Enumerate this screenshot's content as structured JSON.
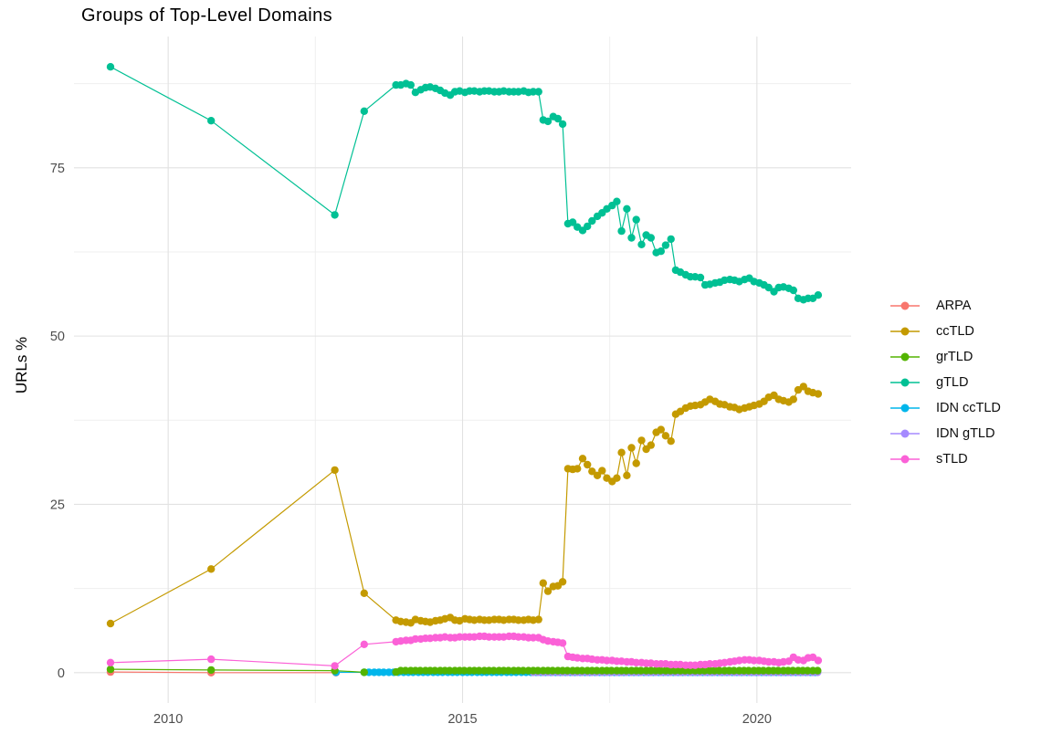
{
  "chart": {
    "title": "Groups of Top-Level Domains",
    "ylabel": "URLs %"
  },
  "chart_data": {
    "type": "line",
    "title": "Groups of Top-Level Domains",
    "xlabel": "",
    "ylabel": "URLs %",
    "grid": true,
    "legend_position": "right",
    "x_domain": [
      2008.4,
      2021.6
    ],
    "y_domain": [
      -4.5,
      94.5
    ],
    "x_ticks": [
      {
        "value": 2010,
        "label": "2010"
      },
      {
        "value": 2015,
        "label": "2015"
      },
      {
        "value": 2020,
        "label": "2020"
      }
    ],
    "y_ticks": [
      {
        "value": 0,
        "label": "0"
      },
      {
        "value": 25,
        "label": "25"
      },
      {
        "value": 50,
        "label": "50"
      },
      {
        "value": 75,
        "label": "75"
      }
    ],
    "x_minor_gridlines": [
      2012.5,
      2017.5
    ],
    "y_minor_gridlines": [
      12.5,
      37.5,
      62.5,
      87.5
    ],
    "tick_label_color": "#4d4d4d",
    "major_grid_color": "#e2e2e2",
    "minor_grid_color": "#efefef",
    "draw_order": [
      "ARPA",
      "ccTLD",
      "IDN ccTLD",
      "IDN gTLD",
      "grTLD",
      "gTLD",
      "sTLD"
    ],
    "series": [
      {
        "name": "ARPA",
        "color": "#F8766D",
        "points": [
          [
            2009.02,
            0.1
          ],
          [
            2010.73,
            0.0
          ],
          [
            2012.85,
            0.0
          ]
        ]
      },
      {
        "name": "ccTLD",
        "color": "#C49A00",
        "points": [
          [
            2009.02,
            7.3
          ],
          [
            2010.73,
            15.4
          ],
          [
            2012.83,
            30.1
          ],
          [
            2013.33,
            11.8
          ],
          [
            2013.87,
            7.8
          ],
          [
            2013.95,
            7.6
          ],
          [
            2014.04,
            7.5
          ],
          [
            2014.12,
            7.4
          ],
          [
            2014.2,
            7.9
          ],
          [
            2014.29,
            7.7
          ],
          [
            2014.37,
            7.6
          ],
          [
            2014.45,
            7.5
          ],
          [
            2014.54,
            7.7
          ],
          [
            2014.62,
            7.8
          ],
          [
            2014.7,
            8.0
          ],
          [
            2014.79,
            8.2
          ],
          [
            2014.87,
            7.8
          ],
          [
            2014.95,
            7.7
          ],
          [
            2015.04,
            8.0
          ],
          [
            2015.12,
            7.9
          ],
          [
            2015.2,
            7.8
          ],
          [
            2015.29,
            7.9
          ],
          [
            2015.37,
            7.8
          ],
          [
            2015.45,
            7.8
          ],
          [
            2015.54,
            7.9
          ],
          [
            2015.62,
            7.9
          ],
          [
            2015.7,
            7.8
          ],
          [
            2015.79,
            7.9
          ],
          [
            2015.87,
            7.9
          ],
          [
            2015.95,
            7.8
          ],
          [
            2016.04,
            7.8
          ],
          [
            2016.12,
            7.9
          ],
          [
            2016.2,
            7.8
          ],
          [
            2016.29,
            7.9
          ],
          [
            2016.37,
            13.3
          ],
          [
            2016.45,
            12.1
          ],
          [
            2016.54,
            12.8
          ],
          [
            2016.62,
            12.9
          ],
          [
            2016.7,
            13.5
          ],
          [
            2016.79,
            30.3
          ],
          [
            2016.87,
            30.2
          ],
          [
            2016.95,
            30.3
          ],
          [
            2017.04,
            31.8
          ],
          [
            2017.12,
            30.9
          ],
          [
            2017.2,
            29.9
          ],
          [
            2017.29,
            29.3
          ],
          [
            2017.37,
            30.0
          ],
          [
            2017.45,
            28.9
          ],
          [
            2017.54,
            28.4
          ],
          [
            2017.62,
            28.9
          ],
          [
            2017.7,
            32.7
          ],
          [
            2017.79,
            29.3
          ],
          [
            2017.87,
            33.4
          ],
          [
            2017.95,
            31.1
          ],
          [
            2018.04,
            34.5
          ],
          [
            2018.12,
            33.2
          ],
          [
            2018.2,
            33.8
          ],
          [
            2018.29,
            35.7
          ],
          [
            2018.37,
            36.1
          ],
          [
            2018.45,
            35.2
          ],
          [
            2018.54,
            34.4
          ],
          [
            2018.62,
            38.4
          ],
          [
            2018.7,
            38.8
          ],
          [
            2018.79,
            39.3
          ],
          [
            2018.87,
            39.6
          ],
          [
            2018.95,
            39.7
          ],
          [
            2019.04,
            39.8
          ],
          [
            2019.12,
            40.2
          ],
          [
            2019.2,
            40.6
          ],
          [
            2019.29,
            40.3
          ],
          [
            2019.37,
            39.9
          ],
          [
            2019.45,
            39.8
          ],
          [
            2019.54,
            39.5
          ],
          [
            2019.62,
            39.4
          ],
          [
            2019.7,
            39.1
          ],
          [
            2019.79,
            39.3
          ],
          [
            2019.87,
            39.5
          ],
          [
            2019.95,
            39.7
          ],
          [
            2020.04,
            39.9
          ],
          [
            2020.12,
            40.3
          ],
          [
            2020.2,
            40.9
          ],
          [
            2020.29,
            41.2
          ],
          [
            2020.37,
            40.6
          ],
          [
            2020.45,
            40.4
          ],
          [
            2020.54,
            40.2
          ],
          [
            2020.62,
            40.6
          ],
          [
            2020.7,
            42.0
          ],
          [
            2020.79,
            42.5
          ],
          [
            2020.87,
            41.8
          ],
          [
            2020.95,
            41.6
          ],
          [
            2021.04,
            41.4
          ]
        ]
      },
      {
        "name": "grTLD",
        "color": "#53B400",
        "points": [
          [
            2009.02,
            0.5
          ],
          [
            2010.73,
            0.4
          ],
          [
            2012.83,
            0.3
          ],
          [
            2013.33,
            0.05
          ],
          [
            2013.87,
            0.1
          ]
        ],
        "flat": {
          "from": 2013.95,
          "to": 2021.04,
          "step": 0.0833,
          "y": 0.3
        }
      },
      {
        "name": "gTLD",
        "color": "#00C094",
        "points": [
          [
            2009.02,
            90.0
          ],
          [
            2010.73,
            82.0
          ],
          [
            2012.83,
            68.0
          ],
          [
            2013.33,
            83.4
          ],
          [
            2013.87,
            87.3
          ],
          [
            2013.95,
            87.3
          ],
          [
            2014.04,
            87.5
          ],
          [
            2014.12,
            87.3
          ],
          [
            2014.2,
            86.2
          ],
          [
            2014.29,
            86.6
          ],
          [
            2014.37,
            86.9
          ],
          [
            2014.45,
            87.0
          ],
          [
            2014.54,
            86.8
          ],
          [
            2014.62,
            86.5
          ],
          [
            2014.7,
            86.1
          ],
          [
            2014.79,
            85.8
          ],
          [
            2014.87,
            86.3
          ],
          [
            2014.95,
            86.4
          ],
          [
            2015.04,
            86.2
          ],
          [
            2015.12,
            86.4
          ],
          [
            2015.2,
            86.4
          ],
          [
            2015.29,
            86.3
          ],
          [
            2015.37,
            86.4
          ],
          [
            2015.45,
            86.4
          ],
          [
            2015.54,
            86.3
          ],
          [
            2015.62,
            86.3
          ],
          [
            2015.7,
            86.4
          ],
          [
            2015.79,
            86.3
          ],
          [
            2015.87,
            86.3
          ],
          [
            2015.95,
            86.3
          ],
          [
            2016.04,
            86.4
          ],
          [
            2016.12,
            86.2
          ],
          [
            2016.2,
            86.3
          ],
          [
            2016.29,
            86.3
          ],
          [
            2016.37,
            82.1
          ],
          [
            2016.45,
            81.9
          ],
          [
            2016.54,
            82.6
          ],
          [
            2016.62,
            82.3
          ],
          [
            2016.7,
            81.5
          ],
          [
            2016.79,
            66.7
          ],
          [
            2016.87,
            66.9
          ],
          [
            2016.95,
            66.2
          ],
          [
            2017.04,
            65.7
          ],
          [
            2017.12,
            66.3
          ],
          [
            2017.2,
            67.1
          ],
          [
            2017.29,
            67.8
          ],
          [
            2017.37,
            68.3
          ],
          [
            2017.45,
            68.9
          ],
          [
            2017.54,
            69.4
          ],
          [
            2017.62,
            70.0
          ],
          [
            2017.7,
            65.6
          ],
          [
            2017.79,
            68.9
          ],
          [
            2017.87,
            64.6
          ],
          [
            2017.95,
            67.3
          ],
          [
            2018.04,
            63.6
          ],
          [
            2018.12,
            65.0
          ],
          [
            2018.2,
            64.6
          ],
          [
            2018.29,
            62.4
          ],
          [
            2018.37,
            62.6
          ],
          [
            2018.45,
            63.5
          ],
          [
            2018.54,
            64.4
          ],
          [
            2018.62,
            59.8
          ],
          [
            2018.7,
            59.5
          ],
          [
            2018.79,
            59.1
          ],
          [
            2018.87,
            58.8
          ],
          [
            2018.95,
            58.8
          ],
          [
            2019.04,
            58.7
          ],
          [
            2019.12,
            57.6
          ],
          [
            2019.2,
            57.7
          ],
          [
            2019.29,
            57.9
          ],
          [
            2019.37,
            58.0
          ],
          [
            2019.45,
            58.3
          ],
          [
            2019.54,
            58.4
          ],
          [
            2019.62,
            58.3
          ],
          [
            2019.7,
            58.1
          ],
          [
            2019.79,
            58.4
          ],
          [
            2019.87,
            58.6
          ],
          [
            2019.95,
            58.1
          ],
          [
            2020.04,
            57.9
          ],
          [
            2020.12,
            57.6
          ],
          [
            2020.2,
            57.2
          ],
          [
            2020.29,
            56.6
          ],
          [
            2020.37,
            57.2
          ],
          [
            2020.45,
            57.3
          ],
          [
            2020.54,
            57.1
          ],
          [
            2020.62,
            56.8
          ],
          [
            2020.7,
            55.6
          ],
          [
            2020.79,
            55.4
          ],
          [
            2020.87,
            55.6
          ],
          [
            2020.95,
            55.6
          ],
          [
            2021.04,
            56.1
          ]
        ]
      },
      {
        "name": "IDN ccTLD",
        "color": "#00B6EB",
        "points": [
          [
            2012.85,
            0.05
          ]
        ],
        "flat": {
          "from": 2013.33,
          "to": 2021.04,
          "step": 0.0833,
          "y": 0.05
        }
      },
      {
        "name": "IDN gTLD",
        "color": "#A58AFF",
        "points": [],
        "flat": {
          "from": 2016.2,
          "to": 2021.04,
          "step": 0.0833,
          "y": 0.05
        }
      },
      {
        "name": "sTLD",
        "color": "#FB61D7",
        "points": [
          [
            2009.02,
            1.5
          ],
          [
            2010.73,
            2.0
          ],
          [
            2012.83,
            1.0
          ],
          [
            2013.33,
            4.2
          ],
          [
            2013.87,
            4.6
          ],
          [
            2013.95,
            4.7
          ],
          [
            2014.04,
            4.8
          ],
          [
            2014.12,
            4.8
          ],
          [
            2014.2,
            5.0
          ],
          [
            2014.29,
            5.0
          ],
          [
            2014.37,
            5.1
          ],
          [
            2014.45,
            5.1
          ],
          [
            2014.54,
            5.2
          ],
          [
            2014.62,
            5.2
          ],
          [
            2014.7,
            5.3
          ],
          [
            2014.79,
            5.2
          ],
          [
            2014.87,
            5.2
          ],
          [
            2014.95,
            5.3
          ],
          [
            2015.04,
            5.3
          ],
          [
            2015.12,
            5.3
          ],
          [
            2015.2,
            5.3
          ],
          [
            2015.29,
            5.4
          ],
          [
            2015.37,
            5.4
          ],
          [
            2015.45,
            5.3
          ],
          [
            2015.54,
            5.3
          ],
          [
            2015.62,
            5.3
          ],
          [
            2015.7,
            5.3
          ],
          [
            2015.79,
            5.4
          ],
          [
            2015.87,
            5.4
          ],
          [
            2015.95,
            5.3
          ],
          [
            2016.04,
            5.3
          ],
          [
            2016.12,
            5.2
          ],
          [
            2016.2,
            5.2
          ],
          [
            2016.29,
            5.2
          ],
          [
            2016.37,
            4.9
          ],
          [
            2016.45,
            4.7
          ],
          [
            2016.54,
            4.6
          ],
          [
            2016.62,
            4.5
          ],
          [
            2016.7,
            4.4
          ],
          [
            2016.79,
            2.4
          ],
          [
            2016.87,
            2.3
          ],
          [
            2016.95,
            2.2
          ],
          [
            2017.04,
            2.1
          ],
          [
            2017.12,
            2.1
          ],
          [
            2017.2,
            2.0
          ],
          [
            2017.29,
            1.9
          ],
          [
            2017.37,
            1.9
          ],
          [
            2017.45,
            1.8
          ],
          [
            2017.54,
            1.8
          ],
          [
            2017.62,
            1.7
          ],
          [
            2017.7,
            1.7
          ],
          [
            2017.79,
            1.6
          ],
          [
            2017.87,
            1.6
          ],
          [
            2017.95,
            1.5
          ],
          [
            2018.04,
            1.5
          ],
          [
            2018.12,
            1.4
          ],
          [
            2018.2,
            1.4
          ],
          [
            2018.29,
            1.3
          ],
          [
            2018.37,
            1.3
          ],
          [
            2018.45,
            1.3
          ],
          [
            2018.54,
            1.2
          ],
          [
            2018.62,
            1.2
          ],
          [
            2018.7,
            1.2
          ],
          [
            2018.79,
            1.1
          ],
          [
            2018.87,
            1.1
          ],
          [
            2018.95,
            1.1
          ],
          [
            2019.04,
            1.2
          ],
          [
            2019.12,
            1.2
          ],
          [
            2019.2,
            1.3
          ],
          [
            2019.29,
            1.3
          ],
          [
            2019.37,
            1.4
          ],
          [
            2019.45,
            1.5
          ],
          [
            2019.54,
            1.6
          ],
          [
            2019.62,
            1.7
          ],
          [
            2019.7,
            1.8
          ],
          [
            2019.79,
            1.9
          ],
          [
            2019.87,
            1.9
          ],
          [
            2019.95,
            1.8
          ],
          [
            2020.04,
            1.8
          ],
          [
            2020.12,
            1.7
          ],
          [
            2020.2,
            1.6
          ],
          [
            2020.29,
            1.6
          ],
          [
            2020.37,
            1.5
          ],
          [
            2020.45,
            1.6
          ],
          [
            2020.54,
            1.7
          ],
          [
            2020.62,
            2.3
          ],
          [
            2020.7,
            1.9
          ],
          [
            2020.79,
            1.8
          ],
          [
            2020.87,
            2.2
          ],
          [
            2020.95,
            2.3
          ],
          [
            2021.04,
            1.8
          ]
        ]
      }
    ]
  }
}
